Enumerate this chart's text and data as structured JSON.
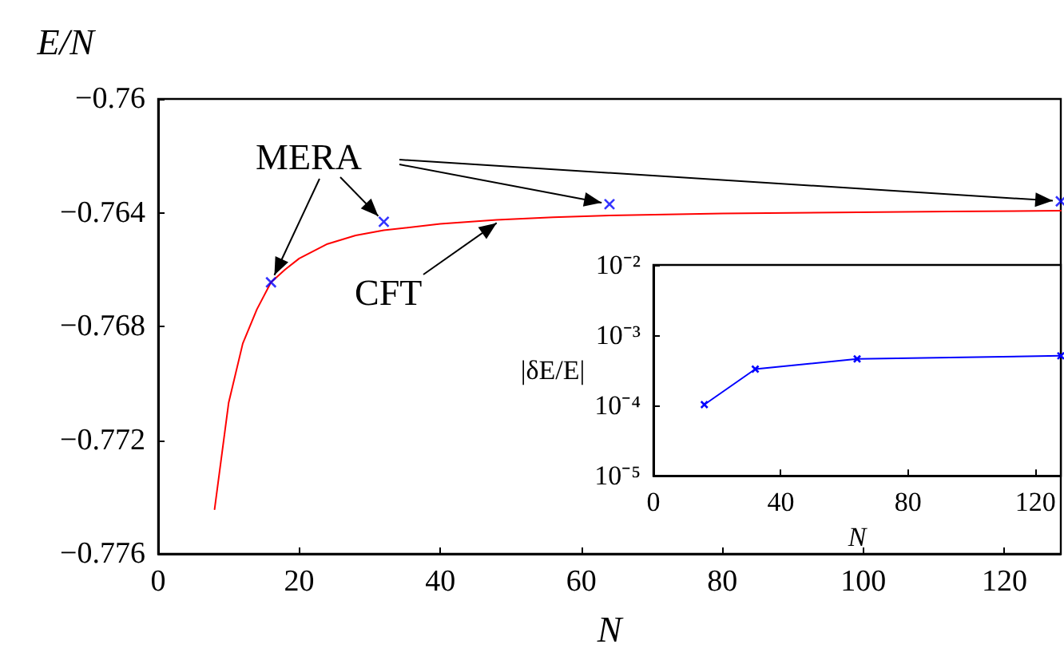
{
  "chart_data": [
    {
      "type": "line",
      "xlabel": "N",
      "ylabel": "E/N",
      "xlim": [
        0,
        128
      ],
      "xticks": [
        0,
        20,
        40,
        60,
        80,
        100,
        120
      ],
      "ylim": [
        -0.776,
        -0.76
      ],
      "yticks": [
        {
          "value": -0.776,
          "label": "−0.776"
        },
        {
          "value": -0.772,
          "label": "−0.772"
        },
        {
          "value": -0.768,
          "label": "−0.768"
        },
        {
          "value": -0.764,
          "label": "−0.764"
        },
        {
          "value": -0.76,
          "label": "−0.76"
        }
      ],
      "grid": false,
      "legend": false,
      "series": [
        {
          "name": "CFT",
          "color": "#ff0000",
          "marker": "none",
          "x": [
            8,
            10,
            12,
            14,
            16,
            18,
            20,
            24,
            28,
            32,
            40,
            48,
            56,
            64,
            80,
            96,
            112,
            128
          ],
          "values": [
            -0.77443,
            -0.77068,
            -0.7686,
            -0.7674,
            -0.76645,
            -0.766,
            -0.76561,
            -0.7651,
            -0.7648,
            -0.76462,
            -0.76439,
            -0.76425,
            -0.76416,
            -0.7641,
            -0.76403,
            -0.76399,
            -0.76396,
            -0.76393
          ]
        },
        {
          "type": "scatter",
          "name": "MERA",
          "color": "#0000ff",
          "marker": "cross",
          "x": [
            16,
            32,
            64,
            128
          ],
          "values": [
            -0.76645,
            -0.76432,
            -0.7637,
            -0.7636
          ]
        }
      ]
    },
    {
      "type": "line",
      "xlabel": "N",
      "ylabel": "|δE/E|",
      "log": "y",
      "xlim": [
        0,
        128
      ],
      "xticks": [
        0,
        40,
        80,
        120
      ],
      "ylim": [
        1e-05,
        0.01
      ],
      "yticks": [
        {
          "value": 1e-05,
          "label": "10⁻⁵"
        },
        {
          "value": 0.0001,
          "label": "10⁻⁴"
        },
        {
          "value": 0.001,
          "label": "10⁻³"
        },
        {
          "value": 0.01,
          "label": "10⁻²"
        }
      ],
      "grid": false,
      "legend": false,
      "series": [
        {
          "color": "#0000ff",
          "marker": "cross",
          "x": [
            16,
            32,
            64,
            128
          ],
          "values": [
            0.000103,
            0.00033,
            0.00046,
            0.00051
          ]
        }
      ]
    }
  ]
}
